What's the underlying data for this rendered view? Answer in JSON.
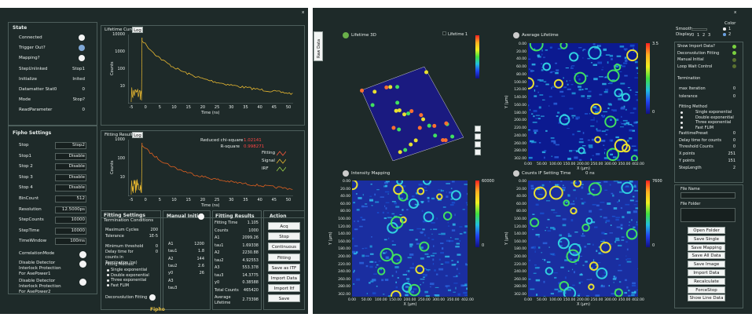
{
  "left": {
    "close": "x",
    "state": {
      "title": "State",
      "rows": [
        {
          "label": "Connected"
        },
        {
          "label": "Trigger Out?"
        },
        {
          "label": "Mapping?"
        },
        {
          "label": "StepUnlinked",
          "value": "Stop1"
        },
        {
          "label": "Initialize",
          "value": "Inited"
        },
        {
          "label": "Datamatter Stat0",
          "value": "0"
        },
        {
          "label": "Mode",
          "value": "Stop?"
        },
        {
          "label": "ReadParameter",
          "value": "0"
        }
      ]
    },
    "fipho_settings": {
      "title": "Fipho Settings",
      "rows": [
        {
          "label": "Stop",
          "value": "Stop2"
        },
        {
          "label": "Stop1",
          "value": "Disable"
        },
        {
          "label": "Stop 2",
          "value": "Disable"
        },
        {
          "label": "Stop 3",
          "value": "Disable"
        },
        {
          "label": "Stop 4",
          "value": "Disable"
        },
        {
          "label": "BinCount",
          "value": "512"
        },
        {
          "label": "Resolution",
          "value": "12.5000ps"
        },
        {
          "label": "StepCounts",
          "value": "10000"
        },
        {
          "label": "StepTime",
          "value": "10000"
        },
        {
          "label": "TimeWindow",
          "value": "100ms"
        }
      ],
      "toggles": [
        "CorrelationMode",
        "Disable Detector Interlock Protection For AsePower1",
        "Disable Detector Interlock Protection For AsePower2"
      ]
    },
    "lifetime_curves": {
      "title": "Lifetime Curves",
      "button": "Log",
      "yticks": [
        "10000",
        "1000",
        "100",
        "10"
      ],
      "xticks": [
        "-5",
        "0",
        "5",
        "10",
        "15",
        "20",
        "25",
        "30",
        "35",
        "40",
        "45",
        "50"
      ],
      "ylabel": "Counts",
      "xlabel": "Time (ns)"
    },
    "fitting_curves": {
      "title": "Fitting Results",
      "button": "Log",
      "yticks": [
        "1000",
        "100",
        "10"
      ],
      "xticks": [
        "-5",
        "0",
        "5",
        "10",
        "15",
        "20",
        "25",
        "30",
        "35",
        "40",
        "45",
        "50"
      ],
      "ylabel": "Counts",
      "xlabel": "Time (ns)",
      "stats": [
        {
          "label": "Reduced chi-square",
          "value": "1.02141"
        },
        {
          "label": "R-square",
          "value": "0.998271"
        }
      ],
      "legend": [
        "Fitting",
        "Signal",
        "IRF"
      ]
    },
    "fitting_settings": {
      "title": "Fitting Settings",
      "subtitle": "Termination Conditions",
      "rows": [
        {
          "label": "Maximum Cycles",
          "value": "200"
        },
        {
          "label": "Tolerance",
          "value": "1E-5"
        },
        {
          "label": "Minimum threshold",
          "value": "0"
        },
        {
          "label": "Delay time for counts in Termination (ns)",
          "value": "0"
        }
      ],
      "method": "Fitting Method",
      "options": [
        "Single exponential",
        "Double exponential",
        "Three exponential",
        "Fast FLIM"
      ],
      "deconvolution": "Deconvolution Fitting"
    },
    "manual_initial": {
      "title": "Manual Initial",
      "rows": [
        {
          "label": "A1",
          "value": "1200"
        },
        {
          "label": "tau1",
          "value": "1.8"
        },
        {
          "label": "A2",
          "value": "144"
        },
        {
          "label": "tau2",
          "value": "2.6"
        },
        {
          "label": "y0",
          "value": "26"
        },
        {
          "label": "A3"
        },
        {
          "label": "tau3"
        }
      ]
    },
    "fitting_results": {
      "title": "Fitting Results",
      "rows": [
        {
          "label": "Fitting Time",
          "value": "1.105"
        },
        {
          "label": "Counts",
          "value": "1000"
        },
        {
          "label": "A1",
          "value": "2099.26"
        },
        {
          "label": "tau1",
          "value": "1.69338"
        },
        {
          "label": "A2",
          "value": "2230.88"
        },
        {
          "label": "tau2",
          "value": "4.92553"
        },
        {
          "label": "A3",
          "value": "553.378"
        },
        {
          "label": "tau3",
          "value": "14.3775"
        },
        {
          "label": "y0",
          "value": "0.38588"
        },
        {
          "label": "Total Counts",
          "value": "465420"
        },
        {
          "label": "Average Lifetime",
          "value": "2.73398"
        }
      ]
    },
    "action": {
      "title": "Action",
      "buttons": [
        "Acq",
        "Stop",
        "Continuous Acq",
        "Fitting",
        "Save as ITF",
        "Import Data",
        "Import Itf",
        "Save"
      ]
    },
    "footer": "Fipho"
  },
  "right": {
    "close": "x",
    "tab": "Raw Data",
    "display": {
      "smooth": "Smooth",
      "display": "Display",
      "display_options": [
        "0",
        "1",
        "2",
        "3"
      ],
      "color": "Color",
      "color_options": [
        "1",
        "2"
      ]
    },
    "lifetime_3d": {
      "title": "Lifetime 3D",
      "toggle": "Lifetime 1"
    },
    "average_lifetime": {
      "title": "Average Lifetime",
      "colorbar": [
        "3.5",
        "0"
      ]
    },
    "intensity_mapping": {
      "title": "Intensity Mapping",
      "colorbar": [
        "60000",
        "0"
      ]
    },
    "counts_map": {
      "title": "Counts IF Setting Time",
      "unit": "0 ns",
      "colorbar": [
        "7600",
        "0"
      ]
    },
    "map_axes": {
      "yticks": [
        "0.00",
        "20.00",
        "40.00",
        "60.00",
        "80.00",
        "100.00",
        "120.00",
        "140.00",
        "160.00",
        "180.00",
        "200.00",
        "220.00",
        "240.00",
        "260.00",
        "280.00",
        "302.00"
      ],
      "xticks": [
        "0.00",
        "50.00",
        "100.00",
        "150.00",
        "200.00",
        "250.00",
        "300.00",
        "350.00",
        "402.00"
      ],
      "ylabel": "Y (µm)",
      "xlabel": "X (µm)"
    },
    "options": {
      "checks": [
        "Show Import Data?",
        "Deconvolution Fitting",
        "Manual Initial",
        "Loop Wait Control"
      ],
      "termination": "Termination",
      "rows1": [
        {
          "label": "max Iteration",
          "value": "0"
        },
        {
          "label": "tolerance",
          "value": "0"
        }
      ],
      "method": "Fitting Method",
      "methods": [
        "Single exponential",
        "Double exponential",
        "Three exponential",
        "Fast FLIM"
      ],
      "rows2": [
        {
          "label": "FasttimePreset",
          "value": "0"
        },
        {
          "label": "Delay time for counts",
          "value": "0"
        },
        {
          "label": "Threshold Counts",
          "value": "0"
        },
        {
          "label": "X points",
          "value": "251"
        },
        {
          "label": "Y points",
          "value": "151"
        },
        {
          "label": "StepLength",
          "value": "2"
        }
      ]
    },
    "files": {
      "name_label": "File Name",
      "folder_label": "File Folder",
      "buttons": [
        "Open Folder",
        "Save Single Curve",
        "Save Mapping Data",
        "Save All Data",
        "Save Image",
        "Import Data",
        "Recalculate",
        "ForceStop",
        "Show Line Data"
      ]
    }
  }
}
